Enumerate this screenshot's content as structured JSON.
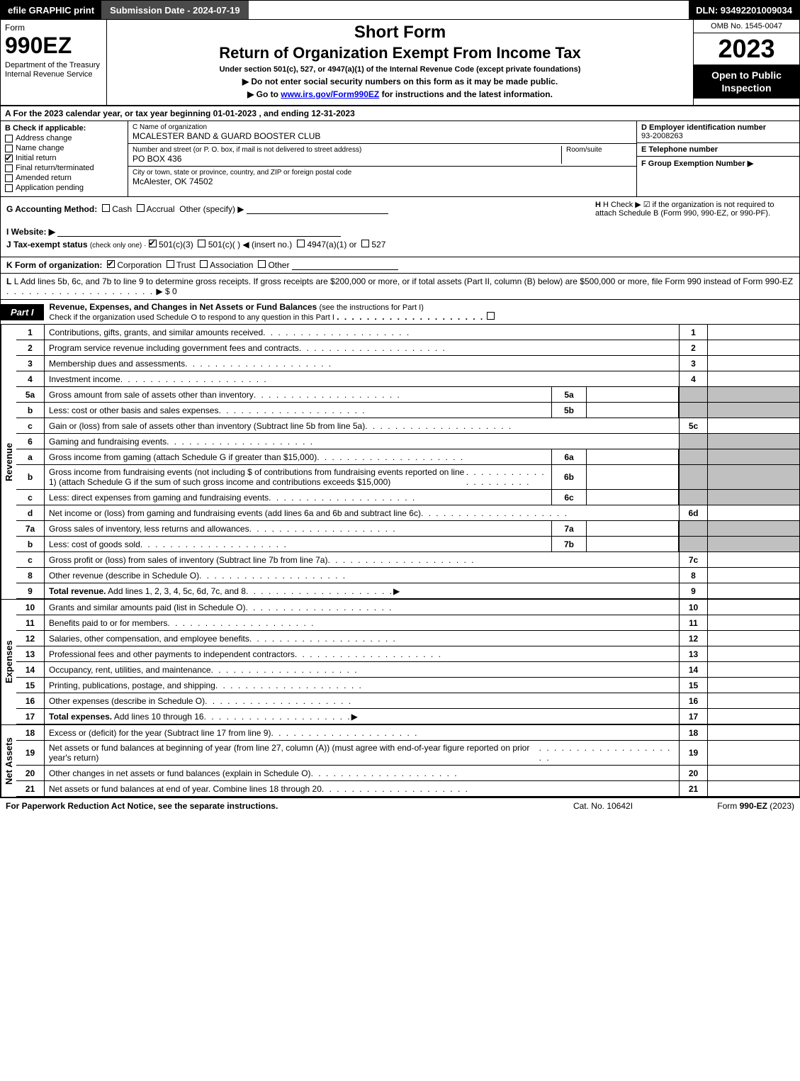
{
  "topbar": {
    "efile": "efile GRAPHIC print",
    "submission": "Submission Date - 2024-07-19",
    "dln": "DLN: 93492201009034"
  },
  "header": {
    "form_word": "Form",
    "form_number": "990EZ",
    "dept": "Department of the Treasury\nInternal Revenue Service",
    "short_form": "Short Form",
    "title": "Return of Organization Exempt From Income Tax",
    "subtitle": "Under section 501(c), 527, or 4947(a)(1) of the Internal Revenue Code (except private foundations)",
    "instr1": "▶ Do not enter social security numbers on this form as it may be made public.",
    "instr2_pre": "▶ Go to ",
    "instr2_link": "www.irs.gov/Form990EZ",
    "instr2_post": " for instructions and the latest information.",
    "omb": "OMB No. 1545-0047",
    "year": "2023",
    "open_public": "Open to Public Inspection"
  },
  "row_a": "A  For the 2023 calendar year, or tax year beginning 01-01-2023 , and ending 12-31-2023",
  "section_b": {
    "label": "B  Check if applicable:",
    "items": [
      {
        "label": "Address change",
        "checked": false
      },
      {
        "label": "Name change",
        "checked": false
      },
      {
        "label": "Initial return",
        "checked": true
      },
      {
        "label": "Final return/terminated",
        "checked": false
      },
      {
        "label": "Amended return",
        "checked": false
      },
      {
        "label": "Application pending",
        "checked": false
      }
    ]
  },
  "section_c": {
    "name_label": "C Name of organization",
    "name": "MCALESTER BAND & GUARD BOOSTER CLUB",
    "addr_label": "Number and street (or P. O. box, if mail is not delivered to street address)",
    "room_label": "Room/suite",
    "addr": "PO BOX 436",
    "city_label": "City or town, state or province, country, and ZIP or foreign postal code",
    "city": "McAlester, OK  74502"
  },
  "section_def": {
    "d_label": "D Employer identification number",
    "d_val": "93-2008263",
    "e_label": "E Telephone number",
    "f_label": "F Group Exemption Number   ▶"
  },
  "section_g": {
    "label": "G Accounting Method:",
    "cash": "Cash",
    "accrual": "Accrual",
    "other": "Other (specify) ▶"
  },
  "section_h": {
    "text": "H  Check ▶ ☑ if the organization is not required to attach Schedule B (Form 990, 990-EZ, or 990-PF)."
  },
  "section_i": {
    "label": "I Website: ▶"
  },
  "section_j": {
    "label": "J Tax-exempt status",
    "sub": "(check only one) ·",
    "opt1": "501(c)(3)",
    "opt2": "501(c)(  ) ◀ (insert no.)",
    "opt3": "4947(a)(1) or",
    "opt4": "527"
  },
  "section_k": {
    "label": "K Form of organization:",
    "opts": [
      "Corporation",
      "Trust",
      "Association",
      "Other"
    ],
    "checked_idx": 0
  },
  "section_l": {
    "text": "L Add lines 5b, 6c, and 7b to line 9 to determine gross receipts. If gross receipts are $200,000 or more, or if total assets (Part II, column (B) below) are $500,000 or more, file Form 990 instead of Form 990-EZ",
    "amount": "▶ $ 0"
  },
  "part1": {
    "badge": "Part I",
    "title": "Revenue, Expenses, and Changes in Net Assets or Fund Balances",
    "title_sub": "(see the instructions for Part I)",
    "check_line": "Check if the organization used Schedule O to respond to any question in this Part I"
  },
  "revenue_rows": [
    {
      "num": "1",
      "desc": "Contributions, gifts, grants, and similar amounts received",
      "rnum": "1"
    },
    {
      "num": "2",
      "desc": "Program service revenue including government fees and contracts",
      "rnum": "2"
    },
    {
      "num": "3",
      "desc": "Membership dues and assessments",
      "rnum": "3"
    },
    {
      "num": "4",
      "desc": "Investment income",
      "rnum": "4"
    },
    {
      "num": "5a",
      "desc": "Gross amount from sale of assets other than inventory",
      "mid": "5a"
    },
    {
      "num": "b",
      "desc": "Less: cost or other basis and sales expenses",
      "mid": "5b"
    },
    {
      "num": "c",
      "desc": "Gain or (loss) from sale of assets other than inventory (Subtract line 5b from line 5a)",
      "rnum": "5c"
    },
    {
      "num": "6",
      "desc": "Gaming and fundraising events"
    },
    {
      "num": "a",
      "desc": "Gross income from gaming (attach Schedule G if greater than $15,000)",
      "mid": "6a"
    },
    {
      "num": "b",
      "desc": "Gross income from fundraising events (not including $                  of contributions from fundraising events reported on line 1) (attach Schedule G if the sum of such gross income and contributions exceeds $15,000)",
      "mid": "6b"
    },
    {
      "num": "c",
      "desc": "Less: direct expenses from gaming and fundraising events",
      "mid": "6c"
    },
    {
      "num": "d",
      "desc": "Net income or (loss) from gaming and fundraising events (add lines 6a and 6b and subtract line 6c)",
      "rnum": "6d"
    },
    {
      "num": "7a",
      "desc": "Gross sales of inventory, less returns and allowances",
      "mid": "7a"
    },
    {
      "num": "b",
      "desc": "Less: cost of goods sold",
      "mid": "7b"
    },
    {
      "num": "c",
      "desc": "Gross profit or (loss) from sales of inventory (Subtract line 7b from line 7a)",
      "rnum": "7c"
    },
    {
      "num": "8",
      "desc": "Other revenue (describe in Schedule O)",
      "rnum": "8"
    },
    {
      "num": "9",
      "desc": "Total revenue. Add lines 1, 2, 3, 4, 5c, 6d, 7c, and 8",
      "rnum": "9",
      "bold": true,
      "arrow": true
    }
  ],
  "expense_rows": [
    {
      "num": "10",
      "desc": "Grants and similar amounts paid (list in Schedule O)",
      "rnum": "10"
    },
    {
      "num": "11",
      "desc": "Benefits paid to or for members",
      "rnum": "11"
    },
    {
      "num": "12",
      "desc": "Salaries, other compensation, and employee benefits",
      "rnum": "12"
    },
    {
      "num": "13",
      "desc": "Professional fees and other payments to independent contractors",
      "rnum": "13"
    },
    {
      "num": "14",
      "desc": "Occupancy, rent, utilities, and maintenance",
      "rnum": "14"
    },
    {
      "num": "15",
      "desc": "Printing, publications, postage, and shipping",
      "rnum": "15"
    },
    {
      "num": "16",
      "desc": "Other expenses (describe in Schedule O)",
      "rnum": "16"
    },
    {
      "num": "17",
      "desc": "Total expenses. Add lines 10 through 16",
      "rnum": "17",
      "bold": true,
      "arrow": true
    }
  ],
  "netassets_rows": [
    {
      "num": "18",
      "desc": "Excess or (deficit) for the year (Subtract line 17 from line 9)",
      "rnum": "18"
    },
    {
      "num": "19",
      "desc": "Net assets or fund balances at beginning of year (from line 27, column (A)) (must agree with end-of-year figure reported on prior year's return)",
      "rnum": "19"
    },
    {
      "num": "20",
      "desc": "Other changes in net assets or fund balances (explain in Schedule O)",
      "rnum": "20"
    },
    {
      "num": "21",
      "desc": "Net assets or fund balances at end of year. Combine lines 18 through 20",
      "rnum": "21"
    }
  ],
  "vlabels": {
    "revenue": "Revenue",
    "expenses": "Expenses",
    "netassets": "Net Assets"
  },
  "footer": {
    "left": "For Paperwork Reduction Act Notice, see the separate instructions.",
    "mid": "Cat. No. 10642I",
    "right_pre": "Form ",
    "right_bold": "990-EZ",
    "right_post": " (2023)"
  },
  "colors": {
    "black": "#000000",
    "white": "#ffffff",
    "shade": "#c0c0c0",
    "darkgray": "#4a4a4a"
  }
}
